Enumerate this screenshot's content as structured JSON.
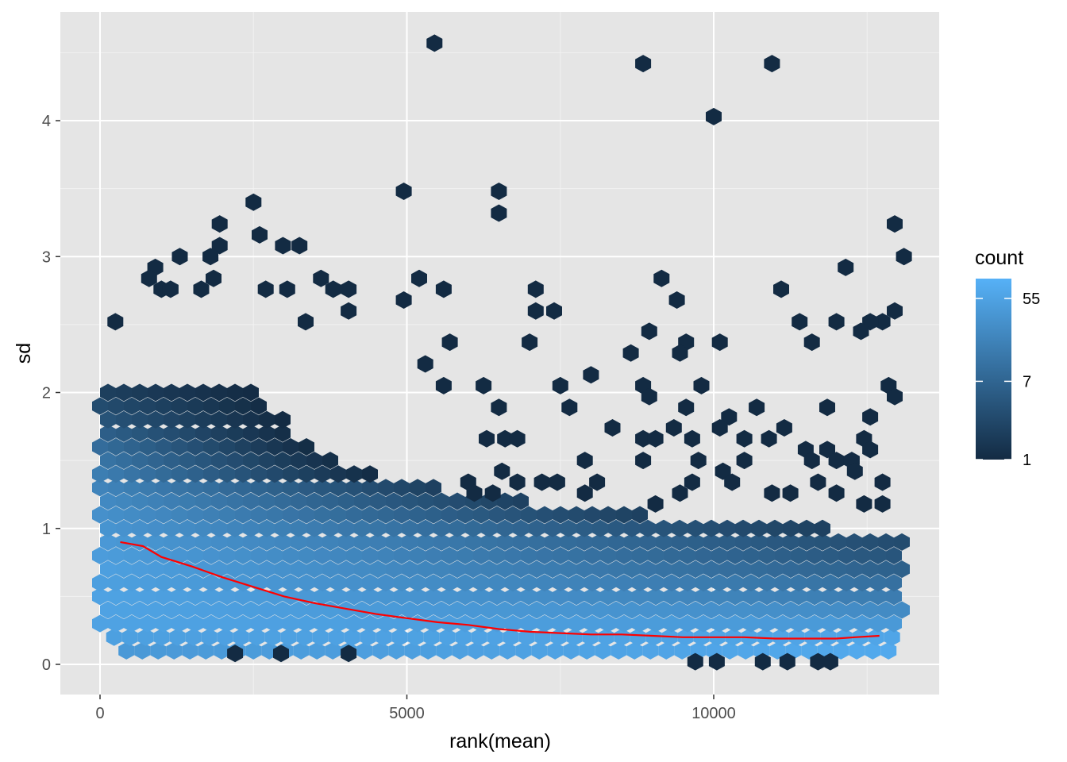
{
  "chart_data": {
    "type": "hexbin",
    "title": "",
    "xlabel": "rank(mean)",
    "ylabel": "sd",
    "xlim": [
      -600,
      13700
    ],
    "ylim": [
      -0.22,
      4.8
    ],
    "x_ticks": [
      0,
      5000,
      10000
    ],
    "x_tick_labels": [
      "0",
      "5000",
      "10000"
    ],
    "y_ticks": [
      0,
      1,
      2,
      3,
      4
    ],
    "y_tick_labels": [
      "0",
      "1",
      "2",
      "3",
      "4"
    ],
    "grid": true,
    "background": "#e5e5e5",
    "legend": {
      "title": "count",
      "placement": "right",
      "scale": "log",
      "range": [
        1,
        90
      ],
      "ticks": [
        1,
        7,
        55
      ],
      "tick_labels": [
        "1",
        "7",
        "55"
      ],
      "color_low": "#132b43",
      "color_high": "#56b1f7"
    },
    "hex_density": {
      "description_rows": "density bands by sd row (y), x-ranges with approximate counts",
      "rows": [
        {
          "y": 0.1,
          "x_from": 300,
          "x_to": 13100,
          "count_left": 40,
          "count_right": 70
        },
        {
          "y": 0.2,
          "x_from": 100,
          "x_to": 13100,
          "count_left": 50,
          "count_right": 60
        },
        {
          "y": 0.3,
          "x_from": 0,
          "x_to": 13100,
          "count_left": 55,
          "count_right": 40
        },
        {
          "y": 0.4,
          "x_from": 0,
          "x_to": 13100,
          "count_left": 55,
          "count_right": 25
        },
        {
          "y": 0.5,
          "x_from": 0,
          "x_to": 13100,
          "count_left": 55,
          "count_right": 15
        },
        {
          "y": 0.6,
          "x_from": 0,
          "x_to": 13100,
          "count_left": 50,
          "count_right": 10
        },
        {
          "y": 0.7,
          "x_from": 0,
          "x_to": 13100,
          "count_left": 50,
          "count_right": 6
        },
        {
          "y": 0.8,
          "x_from": 0,
          "x_to": 13100,
          "count_left": 45,
          "count_right": 4
        },
        {
          "y": 0.9,
          "x_from": 0,
          "x_to": 13100,
          "count_left": 40,
          "count_right": 3
        },
        {
          "y": 1.0,
          "x_from": 0,
          "x_to": 12000,
          "count_left": 35,
          "count_right": 2
        },
        {
          "y": 1.1,
          "x_from": 0,
          "x_to": 9000,
          "count_left": 30,
          "count_right": 2
        },
        {
          "y": 1.2,
          "x_from": 0,
          "x_to": 7000,
          "count_left": 25,
          "count_right": 2
        },
        {
          "y": 1.3,
          "x_from": 0,
          "x_to": 5500,
          "count_left": 20,
          "count_right": 2
        },
        {
          "y": 1.4,
          "x_from": 0,
          "x_to": 4500,
          "count_left": 16,
          "count_right": 1
        },
        {
          "y": 1.5,
          "x_from": 0,
          "x_to": 4000,
          "count_left": 12,
          "count_right": 1
        },
        {
          "y": 1.6,
          "x_from": 0,
          "x_to": 3500,
          "count_left": 9,
          "count_right": 1
        },
        {
          "y": 1.7,
          "x_from": 0,
          "x_to": 3200,
          "count_left": 6,
          "count_right": 1
        },
        {
          "y": 1.8,
          "x_from": 0,
          "x_to": 3000,
          "count_left": 4,
          "count_right": 1
        },
        {
          "y": 1.9,
          "x_from": 0,
          "x_to": 2800,
          "count_left": 3,
          "count_right": 1
        },
        {
          "y": 2.0,
          "x_from": 0,
          "x_to": 2600,
          "count_left": 2,
          "count_right": 1
        }
      ]
    },
    "series": [
      {
        "type": "line",
        "color": "#ff0000",
        "x": [
          330,
          700,
          1000,
          1500,
          2000,
          2500,
          3000,
          3500,
          4000,
          4500,
          5000,
          5500,
          6000,
          6500,
          7000,
          7500,
          8000,
          8500,
          9000,
          9500,
          10000,
          10500,
          11000,
          11500,
          12000,
          12300,
          12700
        ],
        "y": [
          0.9,
          0.87,
          0.79,
          0.72,
          0.64,
          0.57,
          0.5,
          0.45,
          0.41,
          0.37,
          0.34,
          0.31,
          0.29,
          0.26,
          0.24,
          0.23,
          0.22,
          0.22,
          0.21,
          0.2,
          0.2,
          0.2,
          0.19,
          0.19,
          0.19,
          0.2,
          0.21
        ]
      }
    ],
    "outlier_hexes": [
      [
        5450,
        4.57
      ],
      [
        8850,
        4.42
      ],
      [
        10950,
        4.42
      ],
      [
        10000,
        4.03
      ],
      [
        4950,
        3.48
      ],
      [
        6500,
        3.48
      ],
      [
        6500,
        3.32
      ],
      [
        2500,
        3.4
      ],
      [
        1950,
        3.24
      ],
      [
        12950,
        3.24
      ],
      [
        2600,
        3.16
      ],
      [
        1950,
        3.08
      ],
      [
        2980,
        3.08
      ],
      [
        3250,
        3.08
      ],
      [
        13100,
        3.0
      ],
      [
        1300,
        3.0
      ],
      [
        1800,
        3.0
      ],
      [
        900,
        2.92
      ],
      [
        12150,
        2.92
      ],
      [
        800,
        2.84
      ],
      [
        1850,
        2.84
      ],
      [
        3600,
        2.84
      ],
      [
        5200,
        2.84
      ],
      [
        9150,
        2.84
      ],
      [
        1000,
        2.76
      ],
      [
        1150,
        2.76
      ],
      [
        1650,
        2.76
      ],
      [
        2700,
        2.76
      ],
      [
        3050,
        2.76
      ],
      [
        3800,
        2.76
      ],
      [
        4050,
        2.76
      ],
      [
        5600,
        2.76
      ],
      [
        7100,
        2.76
      ],
      [
        11100,
        2.76
      ],
      [
        4950,
        2.68
      ],
      [
        9400,
        2.68
      ],
      [
        7100,
        2.6
      ],
      [
        7400,
        2.6
      ],
      [
        4050,
        2.6
      ],
      [
        12950,
        2.6
      ],
      [
        3350,
        2.52
      ],
      [
        11400,
        2.52
      ],
      [
        12750,
        2.52
      ],
      [
        12000,
        2.52
      ],
      [
        12550,
        2.52
      ],
      [
        250,
        2.52
      ],
      [
        8950,
        2.45
      ],
      [
        12400,
        2.45
      ],
      [
        7000,
        2.37
      ],
      [
        5700,
        2.37
      ],
      [
        10100,
        2.37
      ],
      [
        11600,
        2.37
      ],
      [
        9550,
        2.37
      ],
      [
        8650,
        2.29
      ],
      [
        9450,
        2.29
      ],
      [
        5300,
        2.21
      ],
      [
        8000,
        2.13
      ],
      [
        7500,
        2.05
      ],
      [
        8850,
        2.05
      ],
      [
        9800,
        2.05
      ],
      [
        12850,
        2.05
      ],
      [
        6250,
        2.05
      ],
      [
        5600,
        2.05
      ],
      [
        12950,
        1.97
      ],
      [
        8950,
        1.97
      ],
      [
        6500,
        1.89
      ],
      [
        7650,
        1.89
      ],
      [
        9550,
        1.89
      ],
      [
        10700,
        1.89
      ],
      [
        11850,
        1.89
      ],
      [
        12550,
        1.82
      ],
      [
        10250,
        1.82
      ],
      [
        8350,
        1.74
      ],
      [
        9350,
        1.74
      ],
      [
        10100,
        1.74
      ],
      [
        11150,
        1.74
      ],
      [
        9650,
        1.66
      ],
      [
        8850,
        1.66
      ],
      [
        9050,
        1.66
      ],
      [
        10500,
        1.66
      ],
      [
        10900,
        1.66
      ],
      [
        6300,
        1.66
      ],
      [
        6600,
        1.66
      ],
      [
        6800,
        1.66
      ],
      [
        12450,
        1.66
      ],
      [
        11500,
        1.58
      ],
      [
        11850,
        1.58
      ],
      [
        12550,
        1.58
      ],
      [
        7900,
        1.5
      ],
      [
        8850,
        1.5
      ],
      [
        9750,
        1.5
      ],
      [
        10500,
        1.5
      ],
      [
        11600,
        1.5
      ],
      [
        12000,
        1.5
      ],
      [
        12250,
        1.5
      ],
      [
        6550,
        1.42
      ],
      [
        10150,
        1.42
      ],
      [
        12300,
        1.42
      ],
      [
        6000,
        1.34
      ],
      [
        6800,
        1.34
      ],
      [
        7200,
        1.34
      ],
      [
        7450,
        1.34
      ],
      [
        8100,
        1.34
      ],
      [
        9650,
        1.34
      ],
      [
        10300,
        1.34
      ],
      [
        11700,
        1.34
      ],
      [
        12750,
        1.34
      ],
      [
        6100,
        1.26
      ],
      [
        6400,
        1.26
      ],
      [
        7900,
        1.26
      ],
      [
        9450,
        1.26
      ],
      [
        10950,
        1.26
      ],
      [
        11250,
        1.26
      ],
      [
        12000,
        1.26
      ],
      [
        9050,
        1.18
      ],
      [
        12450,
        1.18
      ],
      [
        12750,
        1.18
      ],
      [
        9700,
        0.02
      ],
      [
        10050,
        0.02
      ],
      [
        10800,
        0.02
      ],
      [
        11200,
        0.02
      ],
      [
        11700,
        0.02
      ],
      [
        11900,
        0.02
      ],
      [
        2200,
        0.08
      ],
      [
        2950,
        0.08
      ],
      [
        4050,
        0.08
      ]
    ]
  }
}
